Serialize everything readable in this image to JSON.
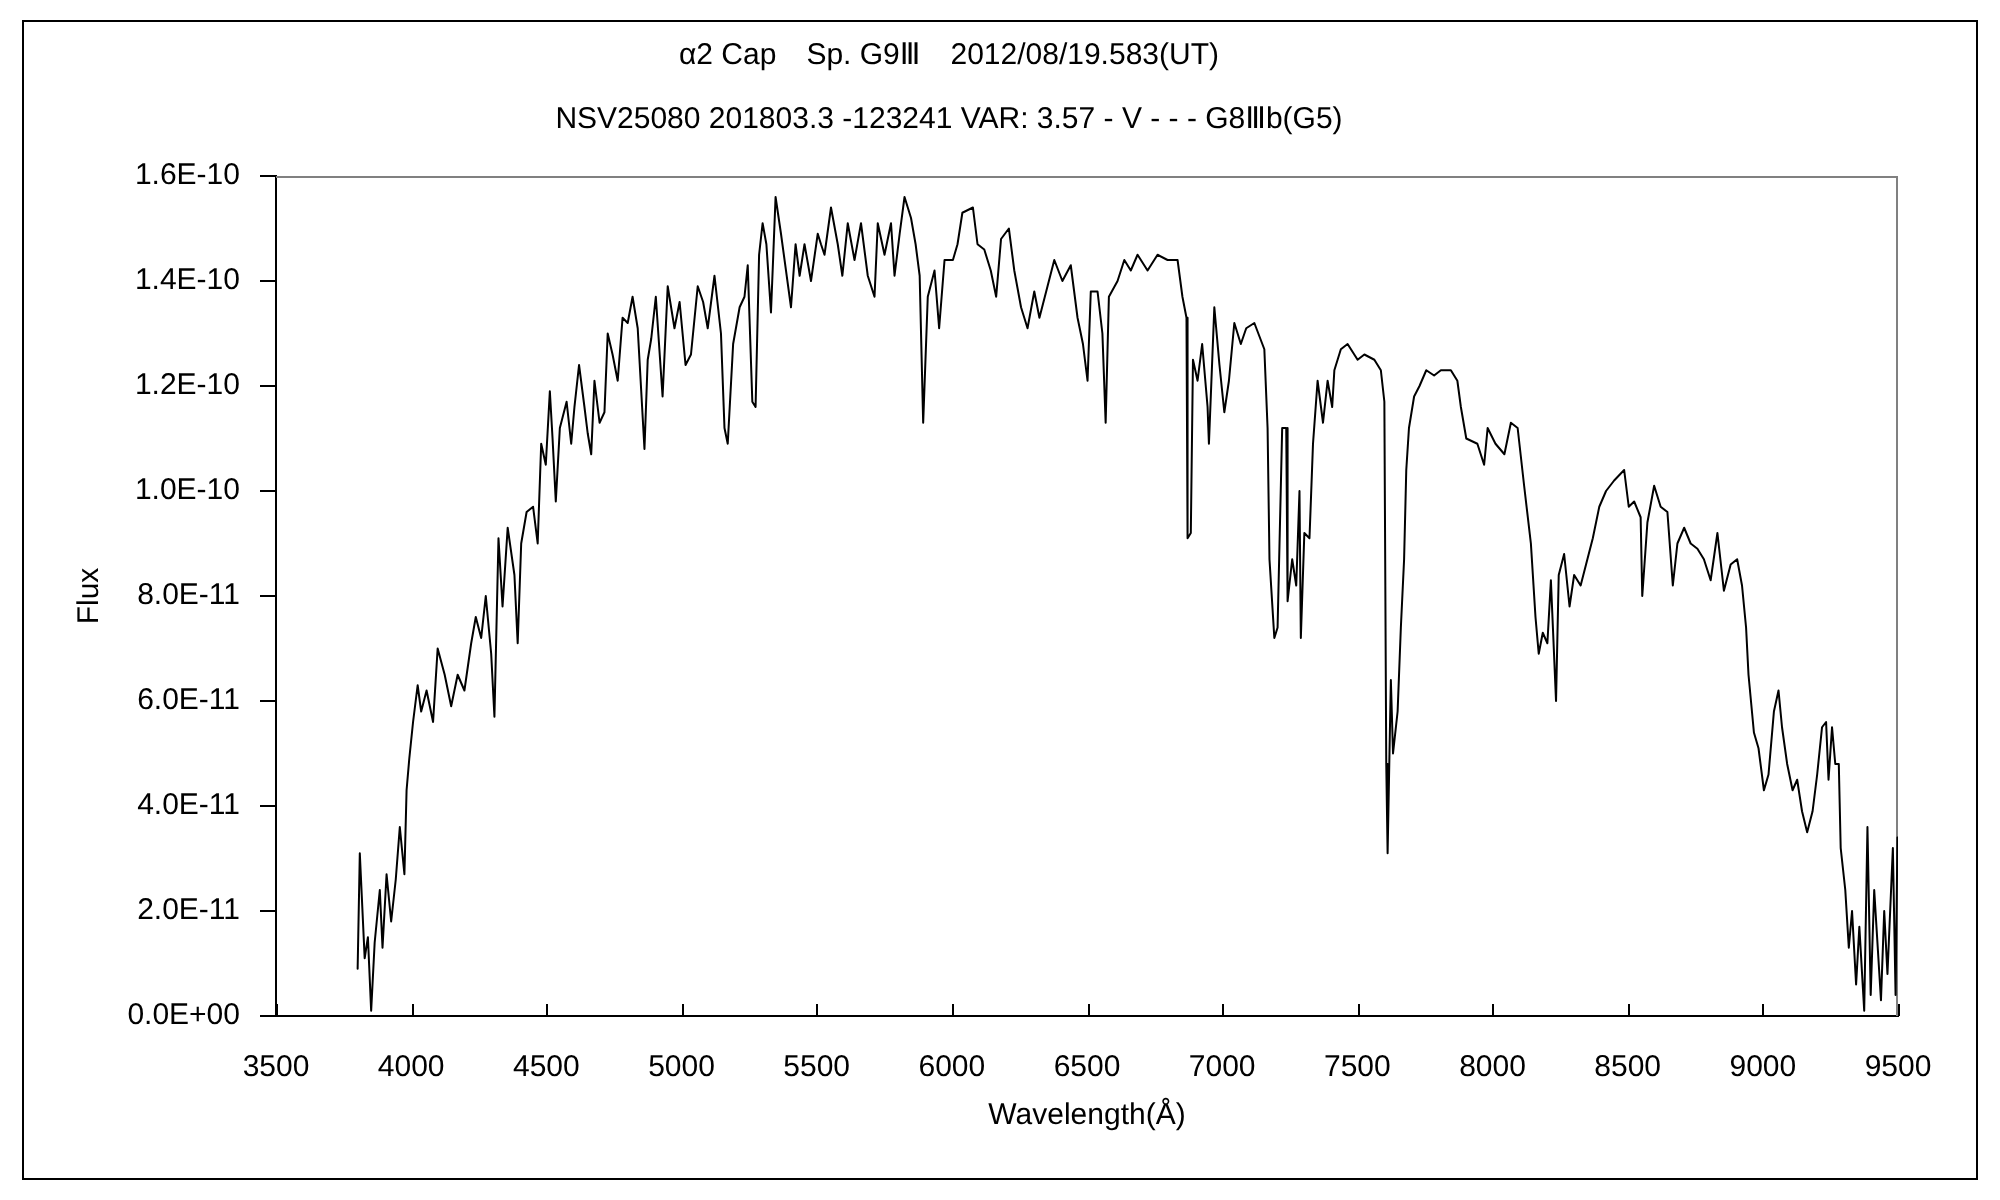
{
  "chart_data": {
    "type": "line",
    "title": "α2 Cap　Sp. G9Ⅲ　2012/08/19.583(UT)",
    "subtitle": "NSV25080 201803.3 -123241 VAR: 3.57 - V - - - G8Ⅲb(G5)",
    "xlabel": "Wavelength(Å)",
    "ylabel": "Flux",
    "xlim": [
      3500,
      9500
    ],
    "xticks": [
      3500,
      4000,
      4500,
      5000,
      5500,
      6000,
      6500,
      7000,
      7500,
      8000,
      8500,
      9000,
      9500
    ],
    "ylim": [
      0,
      1.6e-10
    ],
    "yticks": [
      {
        "value": 0,
        "label": "0.0E+00"
      },
      {
        "value": 2e-11,
        "label": "2.0E-11"
      },
      {
        "value": 4e-11,
        "label": "4.0E-11"
      },
      {
        "value": 6e-11,
        "label": "6.0E-11"
      },
      {
        "value": 8e-11,
        "label": "8.0E-11"
      },
      {
        "value": 1e-10,
        "label": "1.0E-10"
      },
      {
        "value": 1.2e-10,
        "label": "1.2E-10"
      },
      {
        "value": 1.4e-10,
        "label": "1.4E-10"
      },
      {
        "value": 1.6e-10,
        "label": "1.6E-10"
      }
    ],
    "grid": false,
    "legend": false,
    "marker": "none",
    "line_style": "solid",
    "x": [
      3802,
      3810,
      3828,
      3840,
      3852,
      3865,
      3884,
      3894,
      3909,
      3926,
      3943,
      3958,
      3975,
      3983,
      3993,
      4007,
      4024,
      4037,
      4057,
      4081,
      4098,
      4124,
      4148,
      4172,
      4197,
      4222,
      4239,
      4259,
      4276,
      4296,
      4308,
      4323,
      4338,
      4357,
      4382,
      4394,
      4407,
      4427,
      4451,
      4468,
      4481,
      4498,
      4513,
      4523,
      4535,
      4550,
      4575,
      4592,
      4604,
      4621,
      4641,
      4653,
      4666,
      4678,
      4697,
      4715,
      4727,
      4745,
      4764,
      4782,
      4801,
      4819,
      4838,
      4863,
      4875,
      4888,
      4905,
      4930,
      4949,
      4974,
      4993,
      5015,
      5035,
      5060,
      5080,
      5097,
      5122,
      5146,
      5159,
      5171,
      5191,
      5215,
      5233,
      5245,
      5262,
      5274,
      5287,
      5300,
      5314,
      5331,
      5348,
      5368,
      5405,
      5422,
      5437,
      5455,
      5479,
      5504,
      5516,
      5529,
      5553,
      5578,
      5595,
      5615,
      5640,
      5664,
      5689,
      5714,
      5726,
      5751,
      5775,
      5788,
      5807,
      5825,
      5849,
      5866,
      5881,
      5894,
      5911,
      5936,
      5953,
      5973,
      6004,
      6021,
      6039,
      6078,
      6095,
      6120,
      6144,
      6164,
      6182,
      6211,
      6231,
      6256,
      6280,
      6305,
      6324,
      6354,
      6379,
      6409,
      6440,
      6465,
      6485,
      6502,
      6514,
      6539,
      6557,
      6569,
      6581,
      6613,
      6638,
      6662,
      6687,
      6724,
      6761,
      6798,
      6835,
      6853,
      6868,
      6872,
      6884,
      6892,
      6909,
      6926,
      6946,
      6951,
      6971,
      6990,
      7008,
      7025,
      7045,
      7069,
      7089,
      7119,
      7156,
      7168,
      7175,
      7193,
      7205,
      7222,
      7237,
      7242,
      7259,
      7274,
      7286,
      7291,
      7304,
      7323,
      7336,
      7353,
      7373,
      7390,
      7407,
      7415,
      7439,
      7464,
      7501,
      7526,
      7563,
      7587,
      7600,
      7607,
      7612,
      7624,
      7632,
      7649,
      7661,
      7673,
      7681,
      7691,
      7710,
      7730,
      7755,
      7784,
      7809,
      7846,
      7870,
      7883,
      7903,
      7944,
      7969,
      7982,
      8011,
      8044,
      8068,
      8093,
      8117,
      8142,
      8159,
      8171,
      8186,
      8203,
      8216,
      8235,
      8245,
      8265,
      8285,
      8302,
      8326,
      8346,
      8371,
      8395,
      8420,
      8450,
      8487,
      8504,
      8524,
      8548,
      8554,
      8573,
      8598,
      8622,
      8647,
      8667,
      8684,
      8709,
      8733,
      8758,
      8782,
      8807,
      8832,
      8856,
      8881,
      8905,
      8923,
      8938,
      8947,
      8967,
      8984,
      9004,
      9021,
      9041,
      9058,
      9071,
      9090,
      9110,
      9127,
      9145,
      9164,
      9184,
      9201,
      9219,
      9234,
      9243,
      9256,
      9268,
      9281,
      9288,
      9305,
      9318,
      9330,
      9345,
      9357,
      9375,
      9387,
      9399,
      9412,
      9437,
      9449,
      9461,
      9481,
      9491,
      9498
    ],
    "series": [
      {
        "color": "#000000",
        "values": [
          9e-12,
          3.1e-11,
          1.1e-11,
          1.5e-11,
          1e-12,
          1.4e-11,
          2.4e-11,
          1.3e-11,
          2.7e-11,
          1.8e-11,
          2.6e-11,
          3.6e-11,
          2.7e-11,
          4.3e-11,
          4.9e-11,
          5.6e-11,
          6.3e-11,
          5.8e-11,
          6.2e-11,
          5.6e-11,
          7e-11,
          6.5e-11,
          5.9e-11,
          6.5e-11,
          6.2e-11,
          7.1e-11,
          7.6e-11,
          7.2e-11,
          8e-11,
          6.9e-11,
          5.7e-11,
          9.1e-11,
          7.8e-11,
          9.3e-11,
          8.4e-11,
          7.1e-11,
          9e-11,
          9.6e-11,
          9.7e-11,
          9e-11,
          1.09e-10,
          1.05e-10,
          1.19e-10,
          1.1e-10,
          9.8e-11,
          1.12e-10,
          1.17e-10,
          1.09e-10,
          1.16e-10,
          1.24e-10,
          1.16e-10,
          1.11e-10,
          1.07e-10,
          1.21e-10,
          1.13e-10,
          1.15e-10,
          1.3e-10,
          1.26e-10,
          1.21e-10,
          1.33e-10,
          1.32e-10,
          1.37e-10,
          1.31e-10,
          1.08e-10,
          1.25e-10,
          1.29e-10,
          1.37e-10,
          1.18e-10,
          1.39e-10,
          1.31e-10,
          1.36e-10,
          1.24e-10,
          1.26e-10,
          1.39e-10,
          1.36e-10,
          1.31e-10,
          1.41e-10,
          1.3e-10,
          1.12e-10,
          1.09e-10,
          1.28e-10,
          1.35e-10,
          1.37e-10,
          1.43e-10,
          1.17e-10,
          1.16e-10,
          1.45e-10,
          1.51e-10,
          1.47e-10,
          1.34e-10,
          1.56e-10,
          1.49e-10,
          1.35e-10,
          1.47e-10,
          1.41e-10,
          1.47e-10,
          1.4e-10,
          1.49e-10,
          1.47e-10,
          1.45e-10,
          1.54e-10,
          1.47e-10,
          1.41e-10,
          1.51e-10,
          1.44e-10,
          1.51e-10,
          1.41e-10,
          1.37e-10,
          1.51e-10,
          1.45e-10,
          1.51e-10,
          1.41e-10,
          1.49e-10,
          1.56e-10,
          1.52e-10,
          1.47e-10,
          1.41e-10,
          1.13e-10,
          1.37e-10,
          1.42e-10,
          1.31e-10,
          1.44e-10,
          1.44e-10,
          1.47e-10,
          1.53e-10,
          1.54e-10,
          1.47e-10,
          1.46e-10,
          1.42e-10,
          1.37e-10,
          1.48e-10,
          1.5e-10,
          1.42e-10,
          1.35e-10,
          1.31e-10,
          1.38e-10,
          1.33e-10,
          1.39e-10,
          1.44e-10,
          1.4e-10,
          1.43e-10,
          1.33e-10,
          1.28e-10,
          1.21e-10,
          1.38e-10,
          1.38e-10,
          1.3e-10,
          1.13e-10,
          1.37e-10,
          1.4e-10,
          1.44e-10,
          1.42e-10,
          1.45e-10,
          1.42e-10,
          1.45e-10,
          1.44e-10,
          1.44e-10,
          1.37e-10,
          1.33e-10,
          9.1e-11,
          9.2e-11,
          1.25e-10,
          1.21e-10,
          1.28e-10,
          1.16e-10,
          1.09e-10,
          1.35e-10,
          1.24e-10,
          1.15e-10,
          1.21e-10,
          1.32e-10,
          1.28e-10,
          1.31e-10,
          1.32e-10,
          1.27e-10,
          1.12e-10,
          8.7e-11,
          7.2e-11,
          7.4e-11,
          1.12e-10,
          1.12e-10,
          7.9e-11,
          8.7e-11,
          8.2e-11,
          1e-10,
          7.2e-11,
          9.2e-11,
          9.1e-11,
          1.09e-10,
          1.21e-10,
          1.13e-10,
          1.21e-10,
          1.16e-10,
          1.23e-10,
          1.27e-10,
          1.28e-10,
          1.25e-10,
          1.26e-10,
          1.25e-10,
          1.23e-10,
          1.17e-10,
          4.8e-11,
          3.1e-11,
          6.4e-11,
          5e-11,
          5.8e-11,
          7.4e-11,
          8.7e-11,
          1.04e-10,
          1.12e-10,
          1.18e-10,
          1.2e-10,
          1.23e-10,
          1.22e-10,
          1.23e-10,
          1.23e-10,
          1.21e-10,
          1.16e-10,
          1.1e-10,
          1.09e-10,
          1.05e-10,
          1.12e-10,
          1.09e-10,
          1.07e-10,
          1.13e-10,
          1.12e-10,
          1.01e-10,
          9e-11,
          7.6e-11,
          6.9e-11,
          7.3e-11,
          7.1e-11,
          8.3e-11,
          6e-11,
          8.4e-11,
          8.8e-11,
          7.8e-11,
          8.4e-11,
          8.2e-11,
          8.6e-11,
          9.1e-11,
          9.7e-11,
          1e-10,
          1.02e-10,
          1.04e-10,
          9.7e-11,
          9.8e-11,
          9.5e-11,
          8e-11,
          9.4e-11,
          1.01e-10,
          9.7e-11,
          9.6e-11,
          8.2e-11,
          9e-11,
          9.3e-11,
          9e-11,
          8.9e-11,
          8.7e-11,
          8.3e-11,
          9.2e-11,
          8.1e-11,
          8.6e-11,
          8.7e-11,
          8.2e-11,
          7.4e-11,
          6.5e-11,
          5.4e-11,
          5.1e-11,
          4.3e-11,
          4.6e-11,
          5.8e-11,
          6.2e-11,
          5.5e-11,
          4.8e-11,
          4.3e-11,
          4.5e-11,
          3.9e-11,
          3.5e-11,
          3.9e-11,
          4.6e-11,
          5.5e-11,
          5.6e-11,
          4.5e-11,
          5.5e-11,
          4.8e-11,
          4.8e-11,
          3.2e-11,
          2.4e-11,
          1.3e-11,
          2e-11,
          6e-12,
          1.7e-11,
          1e-12,
          3.6e-11,
          4e-12,
          2.4e-11,
          3e-12,
          2e-11,
          8e-12,
          3.2e-11,
          4e-12,
          3.4e-11
        ]
      }
    ]
  }
}
